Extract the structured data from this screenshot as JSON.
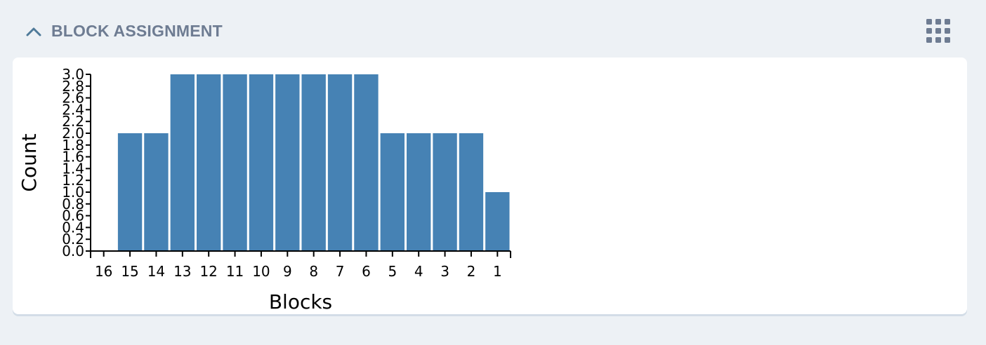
{
  "header": {
    "title": "BLOCK ASSIGNMENT",
    "collapse_icon": "chevron-up-icon",
    "menu_icon": "grid-dots-icon"
  },
  "colors": {
    "bar": "#4682b4",
    "title": "#6e7c92",
    "icon": "#6e7c92",
    "chevron": "#4f7a99"
  },
  "chart_data": {
    "type": "bar",
    "title": "",
    "xlabel": "Blocks",
    "ylabel": "Count",
    "categories": [
      "16",
      "15",
      "14",
      "13",
      "12",
      "11",
      "10",
      "9",
      "8",
      "7",
      "6",
      "5",
      "4",
      "3",
      "2",
      "1"
    ],
    "values": [
      0,
      2,
      2,
      3,
      3,
      3,
      3,
      3,
      3,
      3,
      3,
      2,
      2,
      2,
      2,
      1
    ],
    "ylim": [
      0,
      3
    ],
    "yticks": [
      "0.0",
      "0.2",
      "0.4",
      "0.6",
      "0.8",
      "1.0",
      "1.2",
      "1.4",
      "1.6",
      "1.8",
      "2.0",
      "2.2",
      "2.4",
      "2.6",
      "2.8",
      "3.0"
    ],
    "grid": false,
    "legend": "none"
  }
}
